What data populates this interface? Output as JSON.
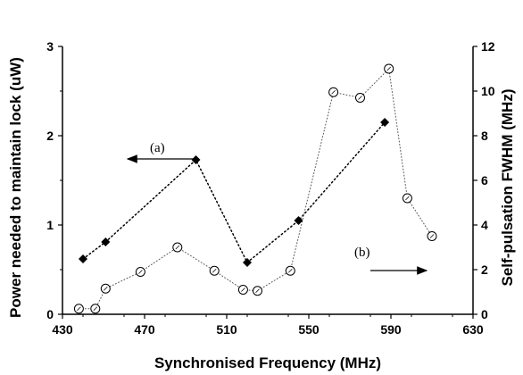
{
  "chart_data": {
    "type": "line",
    "title": "",
    "xlabel": "Synchronised Frequency (MHz)",
    "ylabel_left": "Power needed to maintain lock (uW)",
    "ylabel_right": "Self-pulsation FWHM (MHz)",
    "xlim": [
      430,
      630
    ],
    "ylim_left": [
      0,
      3
    ],
    "ylim_right": [
      0,
      12
    ],
    "x_ticks": [
      "430",
      "470",
      "510",
      "550",
      "590",
      "630"
    ],
    "y_left_ticks": [
      "0",
      "1",
      "2",
      "3"
    ],
    "y_right_ticks": [
      "0",
      "2",
      "4",
      "6",
      "8",
      "10",
      "12"
    ],
    "grid": false,
    "series": [
      {
        "axis": "left",
        "marker": "diamond",
        "x": [
          440,
          451,
          495,
          520,
          545,
          587
        ],
        "y": [
          0.62,
          0.81,
          1.73,
          0.58,
          1.05,
          2.15
        ]
      },
      {
        "axis": "right",
        "marker": "open-circle",
        "x": [
          438,
          446,
          451,
          468,
          486,
          504,
          518,
          525,
          541,
          562,
          575,
          589,
          598,
          610
        ],
        "y": [
          0.25,
          0.25,
          1.15,
          1.9,
          3.0,
          1.95,
          1.1,
          1.05,
          1.95,
          9.95,
          9.7,
          11.0,
          5.2,
          3.5
        ]
      }
    ],
    "annotations": [
      {
        "text": "(a)",
        "arrow": "left"
      },
      {
        "text": "(b)",
        "arrow": "right"
      }
    ]
  }
}
